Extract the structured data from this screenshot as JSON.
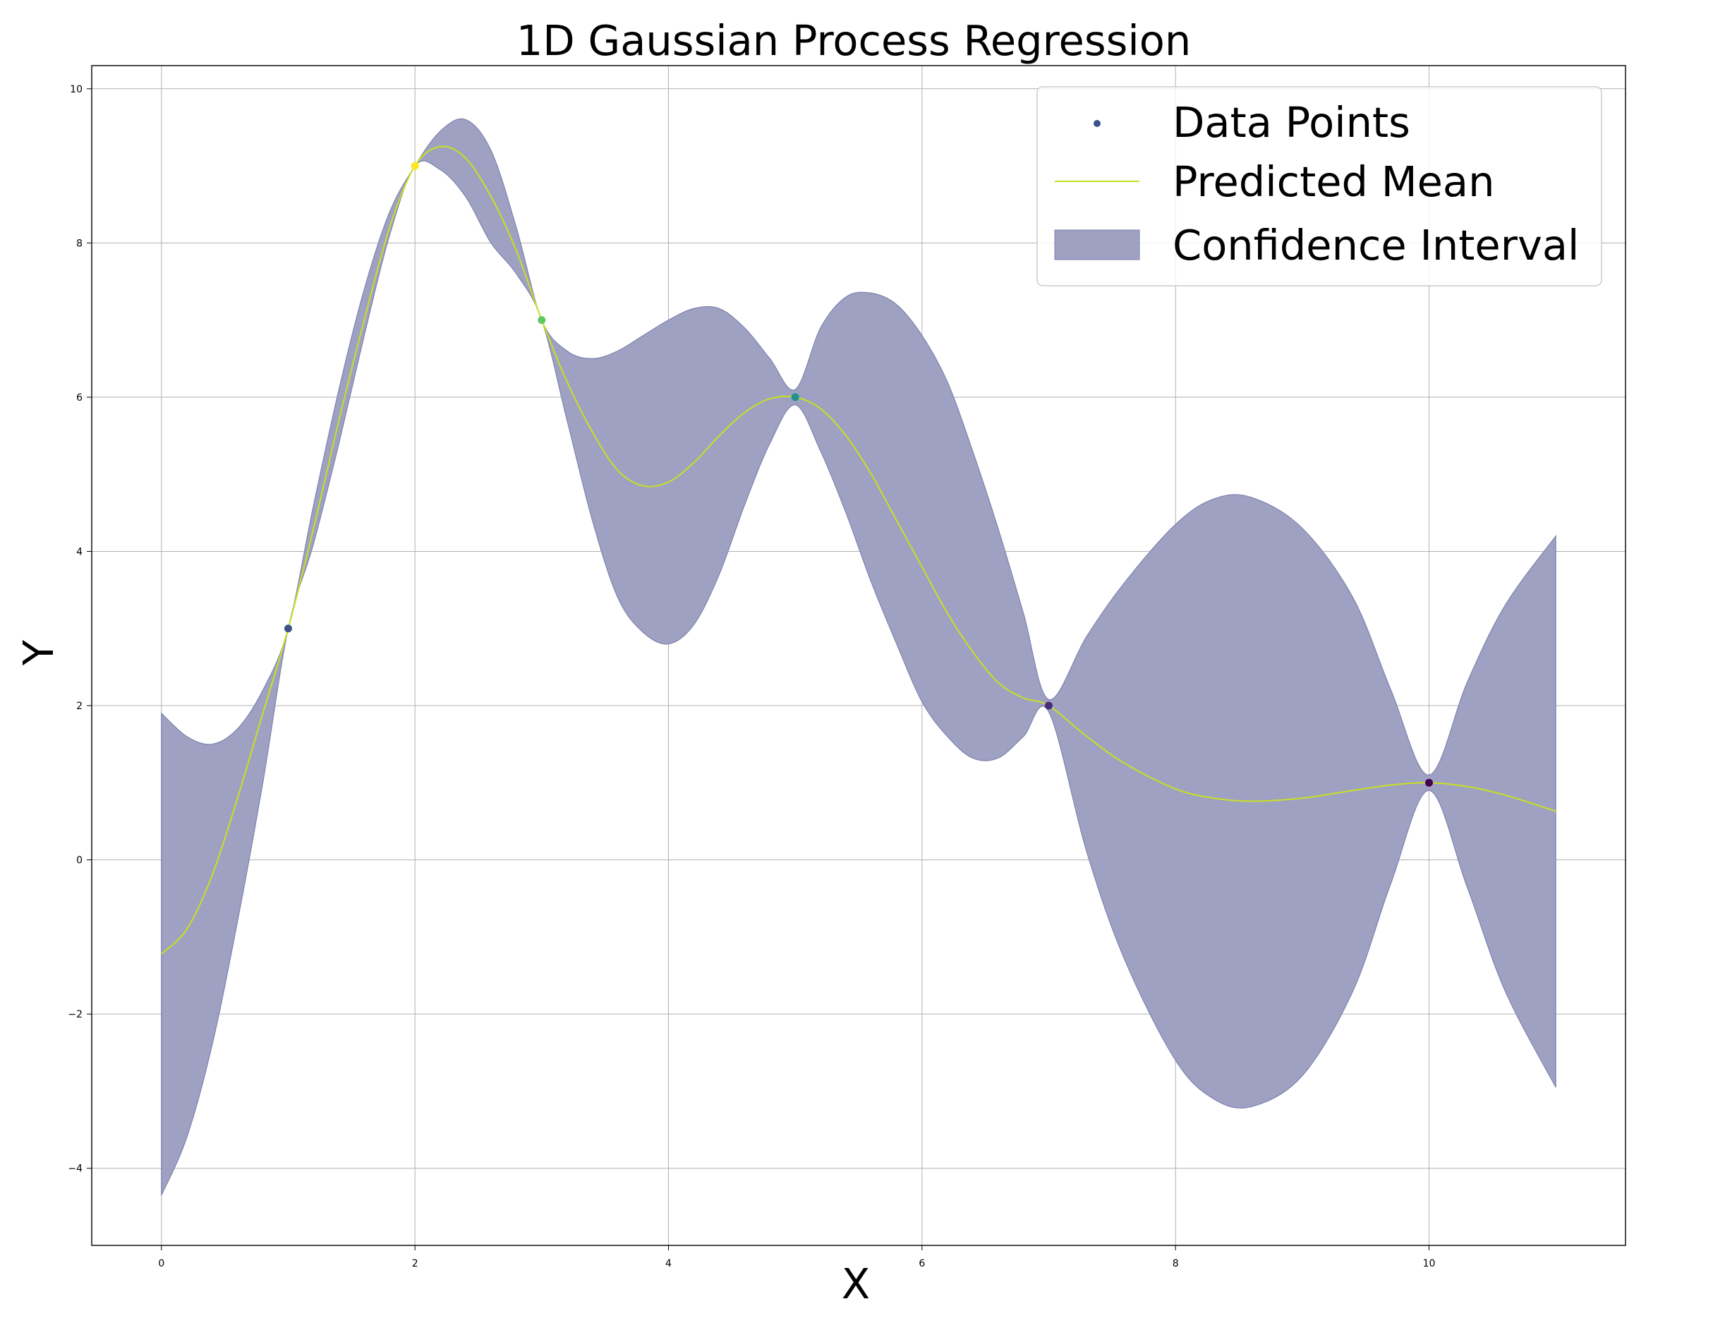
{
  "chart_data": {
    "type": "line",
    "title": "1D Gaussian Process Regression",
    "xlabel": "X",
    "ylabel": "Y",
    "xlim": [
      -0.55,
      11.55
    ],
    "ylim": [
      -5.0,
      10.3
    ],
    "xticks": [
      0,
      2,
      4,
      6,
      8,
      10
    ],
    "yticks": [
      -4,
      -2,
      0,
      2,
      4,
      6,
      8,
      10
    ],
    "xtick_labels": [
      "0",
      "2",
      "4",
      "6",
      "8",
      "10"
    ],
    "ytick_labels": [
      "−4",
      "−2",
      "0",
      "2",
      "4",
      "6",
      "8",
      "10"
    ],
    "grid": true,
    "legend_position": "top-right",
    "legend": {
      "data_points": "Data Points",
      "predicted_mean": "Predicted Mean",
      "confidence_interval": "Confidence Interval"
    },
    "colors": {
      "mean_line": "#c8e020",
      "band_fill": "#9fa1c3",
      "band_edge": "#7e82ad",
      "legend_marker": "#3b528b",
      "axes": "#000000"
    },
    "data_points": [
      {
        "x": 1,
        "y": 3,
        "color": "#3b528b"
      },
      {
        "x": 2,
        "y": 9,
        "color": "#fde725"
      },
      {
        "x": 3,
        "y": 7,
        "color": "#5ec962"
      },
      {
        "x": 5,
        "y": 6,
        "color": "#21918c"
      },
      {
        "x": 7,
        "y": 2,
        "color": "#472d7b"
      },
      {
        "x": 10,
        "y": 1,
        "color": "#440154"
      }
    ],
    "predicted_mean": [
      {
        "x": 0.0,
        "y": -1.22
      },
      {
        "x": 0.2,
        "y": -0.9
      },
      {
        "x": 0.4,
        "y": -0.2
      },
      {
        "x": 0.6,
        "y": 0.8
      },
      {
        "x": 0.8,
        "y": 1.9
      },
      {
        "x": 1.0,
        "y": 3.0
      },
      {
        "x": 1.2,
        "y": 4.3
      },
      {
        "x": 1.4,
        "y": 5.7
      },
      {
        "x": 1.6,
        "y": 7.0
      },
      {
        "x": 1.8,
        "y": 8.2
      },
      {
        "x": 2.0,
        "y": 9.0
      },
      {
        "x": 2.2,
        "y": 9.25
      },
      {
        "x": 2.4,
        "y": 9.1
      },
      {
        "x": 2.6,
        "y": 8.6
      },
      {
        "x": 2.8,
        "y": 7.9
      },
      {
        "x": 3.0,
        "y": 7.0
      },
      {
        "x": 3.2,
        "y": 6.2
      },
      {
        "x": 3.4,
        "y": 5.55
      },
      {
        "x": 3.6,
        "y": 5.05
      },
      {
        "x": 3.8,
        "y": 4.85
      },
      {
        "x": 4.0,
        "y": 4.9
      },
      {
        "x": 4.2,
        "y": 5.15
      },
      {
        "x": 4.4,
        "y": 5.5
      },
      {
        "x": 4.6,
        "y": 5.8
      },
      {
        "x": 4.8,
        "y": 5.98
      },
      {
        "x": 5.0,
        "y": 6.0
      },
      {
        "x": 5.2,
        "y": 5.85
      },
      {
        "x": 5.4,
        "y": 5.5
      },
      {
        "x": 5.6,
        "y": 5.0
      },
      {
        "x": 5.8,
        "y": 4.4
      },
      {
        "x": 6.0,
        "y": 3.8
      },
      {
        "x": 6.2,
        "y": 3.2
      },
      {
        "x": 6.4,
        "y": 2.7
      },
      {
        "x": 6.6,
        "y": 2.3
      },
      {
        "x": 6.8,
        "y": 2.1
      },
      {
        "x": 7.0,
        "y": 2.0
      },
      {
        "x": 7.3,
        "y": 1.6
      },
      {
        "x": 7.6,
        "y": 1.25
      },
      {
        "x": 8.0,
        "y": 0.92
      },
      {
        "x": 8.3,
        "y": 0.8
      },
      {
        "x": 8.6,
        "y": 0.76
      },
      {
        "x": 9.0,
        "y": 0.8
      },
      {
        "x": 9.4,
        "y": 0.9
      },
      {
        "x": 9.7,
        "y": 0.97
      },
      {
        "x": 10.0,
        "y": 1.0
      },
      {
        "x": 10.3,
        "y": 0.95
      },
      {
        "x": 10.6,
        "y": 0.84
      },
      {
        "x": 11.0,
        "y": 0.63
      }
    ],
    "confidence_interval": [
      {
        "x": 0.0,
        "lower": -4.35,
        "upper": 1.9
      },
      {
        "x": 0.2,
        "lower": -3.6,
        "upper": 1.6
      },
      {
        "x": 0.4,
        "lower": -2.4,
        "upper": 1.5
      },
      {
        "x": 0.6,
        "lower": -0.8,
        "upper": 1.7
      },
      {
        "x": 0.8,
        "lower": 1.0,
        "upper": 2.2
      },
      {
        "x": 1.0,
        "lower": 3.0,
        "upper": 3.0
      },
      {
        "x": 1.2,
        "lower": 4.1,
        "upper": 4.6
      },
      {
        "x": 1.4,
        "lower": 5.4,
        "upper": 6.1
      },
      {
        "x": 1.6,
        "lower": 6.8,
        "upper": 7.4
      },
      {
        "x": 1.8,
        "lower": 8.1,
        "upper": 8.4
      },
      {
        "x": 2.0,
        "lower": 9.0,
        "upper": 9.0
      },
      {
        "x": 2.2,
        "lower": 8.95,
        "upper": 9.45
      },
      {
        "x": 2.4,
        "lower": 8.6,
        "upper": 9.6
      },
      {
        "x": 2.6,
        "lower": 8.0,
        "upper": 9.2
      },
      {
        "x": 2.8,
        "lower": 7.6,
        "upper": 8.2
      },
      {
        "x": 3.0,
        "lower": 7.0,
        "upper": 7.0
      },
      {
        "x": 3.2,
        "lower": 5.7,
        "upper": 6.6
      },
      {
        "x": 3.4,
        "lower": 4.4,
        "upper": 6.5
      },
      {
        "x": 3.6,
        "lower": 3.4,
        "upper": 6.6
      },
      {
        "x": 3.8,
        "lower": 2.95,
        "upper": 6.8
      },
      {
        "x": 4.0,
        "lower": 2.8,
        "upper": 7.0
      },
      {
        "x": 4.2,
        "lower": 3.05,
        "upper": 7.15
      },
      {
        "x": 4.4,
        "lower": 3.7,
        "upper": 7.15
      },
      {
        "x": 4.6,
        "lower": 4.6,
        "upper": 6.9
      },
      {
        "x": 4.8,
        "lower": 5.4,
        "upper": 6.5
      },
      {
        "x": 5.0,
        "lower": 5.9,
        "upper": 6.1
      },
      {
        "x": 5.2,
        "lower": 5.3,
        "upper": 6.9
      },
      {
        "x": 5.4,
        "lower": 4.5,
        "upper": 7.3
      },
      {
        "x": 5.6,
        "lower": 3.6,
        "upper": 7.35
      },
      {
        "x": 5.8,
        "lower": 2.8,
        "upper": 7.2
      },
      {
        "x": 6.0,
        "lower": 2.05,
        "upper": 6.8
      },
      {
        "x": 6.2,
        "lower": 1.6,
        "upper": 6.2
      },
      {
        "x": 6.4,
        "lower": 1.32,
        "upper": 5.3
      },
      {
        "x": 6.6,
        "lower": 1.32,
        "upper": 4.3
      },
      {
        "x": 6.8,
        "lower": 1.6,
        "upper": 3.2
      },
      {
        "x": 7.0,
        "lower": 1.92,
        "upper": 2.08
      },
      {
        "x": 7.3,
        "lower": 0.1,
        "upper": 2.9
      },
      {
        "x": 7.6,
        "lower": -1.3,
        "upper": 3.6
      },
      {
        "x": 8.0,
        "lower": -2.6,
        "upper": 4.35
      },
      {
        "x": 8.3,
        "lower": -3.1,
        "upper": 4.68
      },
      {
        "x": 8.6,
        "lower": -3.2,
        "upper": 4.7
      },
      {
        "x": 9.0,
        "lower": -2.8,
        "upper": 4.3
      },
      {
        "x": 9.4,
        "lower": -1.7,
        "upper": 3.4
      },
      {
        "x": 9.7,
        "lower": -0.3,
        "upper": 2.2
      },
      {
        "x": 10.0,
        "lower": 0.9,
        "upper": 1.1
      },
      {
        "x": 10.3,
        "lower": -0.35,
        "upper": 2.3
      },
      {
        "x": 10.6,
        "lower": -1.7,
        "upper": 3.3
      },
      {
        "x": 11.0,
        "lower": -2.95,
        "upper": 4.2
      }
    ]
  }
}
